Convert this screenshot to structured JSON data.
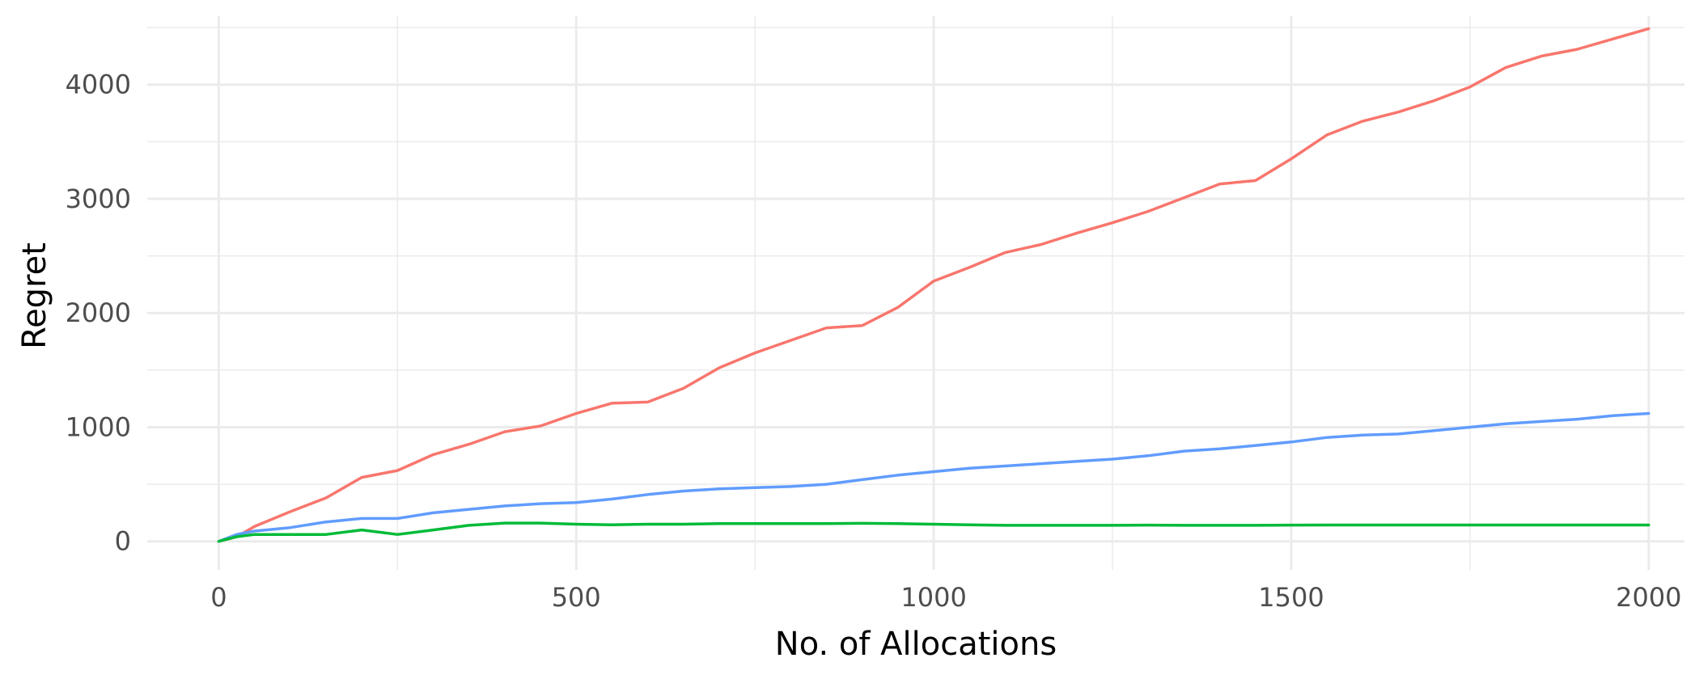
{
  "chart_data": {
    "type": "line",
    "title": "",
    "xlabel": "No. of Allocations",
    "ylabel": "Regret",
    "xlim": [
      -100,
      2050
    ],
    "ylim": [
      -250,
      4600
    ],
    "x_ticks": [
      0,
      500,
      1000,
      1500,
      2000
    ],
    "x_tick_labels": [
      "0",
      "500",
      "1000",
      "1500",
      "2000"
    ],
    "y_ticks": [
      0,
      1000,
      2000,
      3000,
      4000
    ],
    "y_tick_labels": [
      "0",
      "1000",
      "2000",
      "3000",
      "4000"
    ],
    "grid": true,
    "legend": "none",
    "series": [
      {
        "color": "#F8766D",
        "x": [
          0,
          25,
          50,
          100,
          150,
          200,
          250,
          300,
          350,
          400,
          450,
          500,
          550,
          600,
          650,
          700,
          750,
          800,
          850,
          900,
          950,
          1000,
          1050,
          1100,
          1150,
          1200,
          1250,
          1300,
          1350,
          1400,
          1450,
          1500,
          1550,
          1600,
          1650,
          1700,
          1750,
          1800,
          1850,
          1900,
          1950,
          2000
        ],
        "y": [
          0,
          40,
          130,
          260,
          380,
          560,
          620,
          760,
          850,
          960,
          1010,
          1120,
          1210,
          1220,
          1340,
          1520,
          1650,
          1760,
          1870,
          1890,
          2050,
          2280,
          2400,
          2530,
          2600,
          2700,
          2790,
          2890,
          3010,
          3130,
          3160,
          3350,
          3560,
          3680,
          3760,
          3860,
          3980,
          4150,
          4250,
          4310,
          4400,
          4490
        ]
      },
      {
        "color": "#619CFF",
        "x": [
          0,
          25,
          50,
          100,
          150,
          200,
          250,
          300,
          350,
          400,
          450,
          500,
          550,
          600,
          650,
          700,
          750,
          800,
          850,
          900,
          950,
          1000,
          1050,
          1100,
          1150,
          1200,
          1250,
          1300,
          1350,
          1400,
          1450,
          1500,
          1550,
          1600,
          1650,
          1700,
          1750,
          1800,
          1850,
          1900,
          1950,
          2000
        ],
        "y": [
          0,
          60,
          90,
          120,
          170,
          200,
          200,
          250,
          280,
          310,
          330,
          340,
          370,
          410,
          440,
          460,
          470,
          480,
          500,
          540,
          580,
          610,
          640,
          660,
          680,
          700,
          720,
          750,
          790,
          810,
          840,
          870,
          910,
          930,
          940,
          970,
          1000,
          1030,
          1050,
          1070,
          1100,
          1120
        ]
      },
      {
        "color": "#00BA38",
        "x": [
          0,
          25,
          50,
          100,
          150,
          200,
          250,
          300,
          350,
          400,
          450,
          500,
          550,
          600,
          650,
          700,
          750,
          800,
          850,
          900,
          950,
          1000,
          1050,
          1100,
          1150,
          1200,
          1250,
          1300,
          1350,
          1400,
          1450,
          1500,
          1550,
          1600,
          1650,
          1700,
          1750,
          1800,
          1850,
          1900,
          1950,
          2000
        ],
        "y": [
          0,
          40,
          60,
          60,
          60,
          100,
          60,
          100,
          140,
          160,
          160,
          150,
          145,
          150,
          150,
          155,
          155,
          155,
          155,
          158,
          155,
          150,
          145,
          140,
          140,
          140,
          140,
          142,
          140,
          140,
          140,
          142,
          143,
          143,
          143,
          143,
          143,
          143,
          143,
          143,
          143,
          143
        ]
      }
    ]
  }
}
